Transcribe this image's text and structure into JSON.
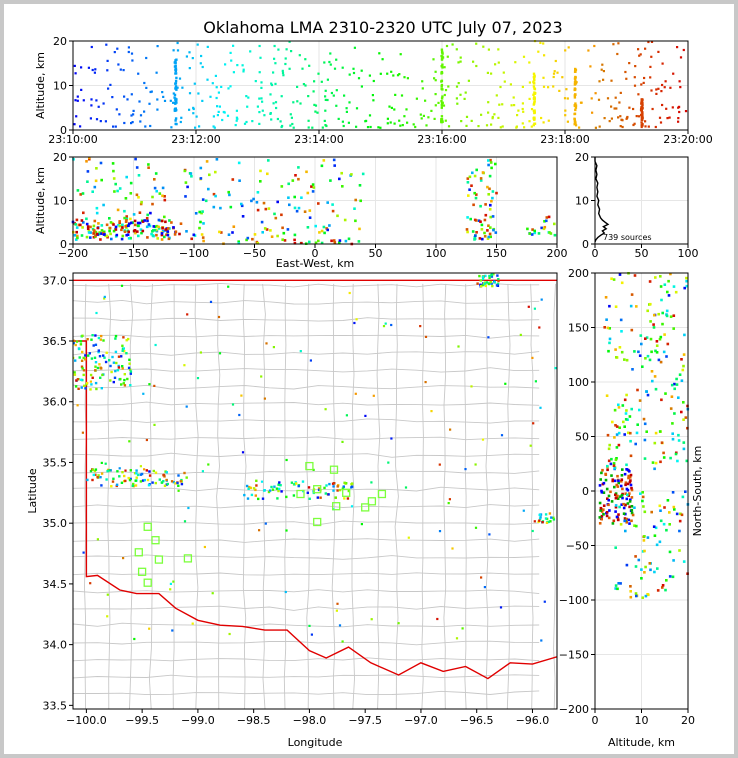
{
  "chart_data": [
    {
      "id": "time_height",
      "type": "scatter",
      "title": "Oklahoma LMA 2310-2320 UTC July 07, 2023",
      "xlabel": "",
      "ylabel": "Altitude, km",
      "x_range": [
        "23:10:00",
        "23:20:00"
      ],
      "ylim": [
        0,
        20
      ],
      "x_ticks": [
        "23:10:00",
        "23:12:00",
        "23:14:00",
        "23:16:00",
        "23:18:00",
        "23:20:00"
      ],
      "y_ticks": [
        "0",
        "10",
        "20"
      ],
      "grid": true,
      "color_encoding": "time (blue to red)",
      "vertical_clusters": [
        {
          "time": "23:11:40",
          "alt_min": 1,
          "alt_max": 16
        },
        {
          "time": "23:16:00",
          "alt_min": 1,
          "alt_max": 19
        },
        {
          "time": "23:17:30",
          "alt_min": 1,
          "alt_max": 13
        },
        {
          "time": "23:18:10",
          "alt_min": 1,
          "alt_max": 14
        },
        {
          "time": "23:19:15",
          "alt_min": 1,
          "alt_max": 7
        }
      ]
    },
    {
      "id": "ew_height",
      "type": "scatter",
      "xlabel": "East-West, km",
      "ylabel": "Altitude, km",
      "xlim": [
        -200,
        200
      ],
      "ylim": [
        0,
        20
      ],
      "x_ticks": [
        "−200",
        "−150",
        "−100",
        "−50",
        "0",
        "50",
        "100",
        "150",
        "200"
      ],
      "y_ticks": [
        "0",
        "10",
        "20"
      ],
      "grid": true,
      "clusters": [
        {
          "x_min": -200,
          "x_max": -120,
          "alt_min": 1,
          "alt_max": 20
        },
        {
          "x_min": -110,
          "x_max": 40,
          "alt_min": 0,
          "alt_max": 20
        },
        {
          "x_min": 125,
          "x_max": 150,
          "alt_min": 1,
          "alt_max": 20
        },
        {
          "x_min": 175,
          "x_max": 200,
          "alt_min": 2,
          "alt_max": 7
        }
      ]
    },
    {
      "id": "histogram",
      "type": "line",
      "xlim": [
        0,
        100
      ],
      "ylim": [
        0,
        20
      ],
      "x_ticks": [
        "0",
        "50",
        "100"
      ],
      "y_ticks": [
        "0",
        "10",
        "20"
      ],
      "annotation": "739 sources",
      "profile": [
        [
          0,
          0.5
        ],
        [
          1,
          1
        ],
        [
          3,
          1.5
        ],
        [
          6,
          2
        ],
        [
          10,
          2.5
        ],
        [
          8,
          3
        ],
        [
          12,
          3.5
        ],
        [
          9,
          4
        ],
        [
          14,
          4.5
        ],
        [
          11,
          5
        ],
        [
          8,
          5.5
        ],
        [
          6,
          6
        ],
        [
          4,
          7
        ],
        [
          5,
          8
        ],
        [
          3,
          9
        ],
        [
          4,
          10
        ],
        [
          2,
          11
        ],
        [
          3,
          12
        ],
        [
          2,
          13
        ],
        [
          3,
          14
        ],
        [
          1,
          15
        ],
        [
          2,
          16
        ],
        [
          1,
          17
        ],
        [
          2,
          18
        ],
        [
          0,
          19
        ],
        [
          0,
          20
        ]
      ]
    },
    {
      "id": "plan_view",
      "type": "scatter",
      "xlabel": "Longitude",
      "ylabel": "Latitude",
      "xlim": [
        -100.12,
        -95.78
      ],
      "ylim": [
        33.47,
        37.06
      ],
      "x_ticks": [
        "−100.0",
        "−99.5",
        "−99.0",
        "−98.5",
        "−98.0",
        "−97.5",
        "−97.0",
        "−96.5",
        "−96.0"
      ],
      "y_ticks": [
        "33.5",
        "34.0",
        "34.5",
        "35.0",
        "35.5",
        "36.0",
        "36.5",
        "37.0"
      ],
      "state_border": "red",
      "county_lines": "gray",
      "stations": [
        [
          -98.0,
          35.47
        ],
        [
          -97.78,
          35.44
        ],
        [
          -98.08,
          35.24
        ],
        [
          -97.93,
          35.28
        ],
        [
          -97.67,
          35.25
        ],
        [
          -97.44,
          35.18
        ],
        [
          -97.35,
          35.24
        ],
        [
          -97.5,
          35.13
        ],
        [
          -97.76,
          35.14
        ],
        [
          -97.93,
          35.01
        ],
        [
          -99.45,
          34.97
        ],
        [
          -99.38,
          34.86
        ],
        [
          -99.53,
          34.76
        ],
        [
          -99.35,
          34.7
        ],
        [
          -99.5,
          34.6
        ],
        [
          -99.45,
          34.51
        ],
        [
          -99.09,
          34.71
        ]
      ],
      "clusters": [
        {
          "lon_min": -100.12,
          "lon_max": -99.6,
          "lat_min": 36.1,
          "lat_max": 36.55
        },
        {
          "lon_min": -100.0,
          "lon_max": -99.1,
          "lat_min": 35.3,
          "lat_max": 35.45
        },
        {
          "lon_min": -98.6,
          "lon_max": -97.6,
          "lat_min": 35.2,
          "lat_max": 35.35
        },
        {
          "lon_min": -96.5,
          "lon_max": -96.3,
          "lat_min": 36.95,
          "lat_max": 37.05
        },
        {
          "lon_min": -95.95,
          "lon_max": -95.8,
          "lat_min": 35.0,
          "lat_max": 35.08
        }
      ]
    },
    {
      "id": "ns_height",
      "type": "scatter",
      "xlabel": "Altitude, km",
      "ylabel": "North-South, km",
      "xlim": [
        0,
        20
      ],
      "ylim": [
        -200,
        200
      ],
      "x_ticks": [
        "0",
        "10",
        "20"
      ],
      "y_ticks": [
        "−200",
        "−150",
        "−100",
        "−50",
        "0",
        "50",
        "100",
        "150",
        "200"
      ],
      "grid": true,
      "clusters": [
        {
          "alt_min": 1,
          "alt_max": 8,
          "ns_min": -30,
          "ns_max": 20
        },
        {
          "alt_min": 2,
          "alt_max": 20,
          "ns_min": 20,
          "ns_max": 200
        },
        {
          "alt_min": 4,
          "alt_max": 20,
          "ns_min": -100,
          "ns_max": 0
        }
      ]
    }
  ]
}
